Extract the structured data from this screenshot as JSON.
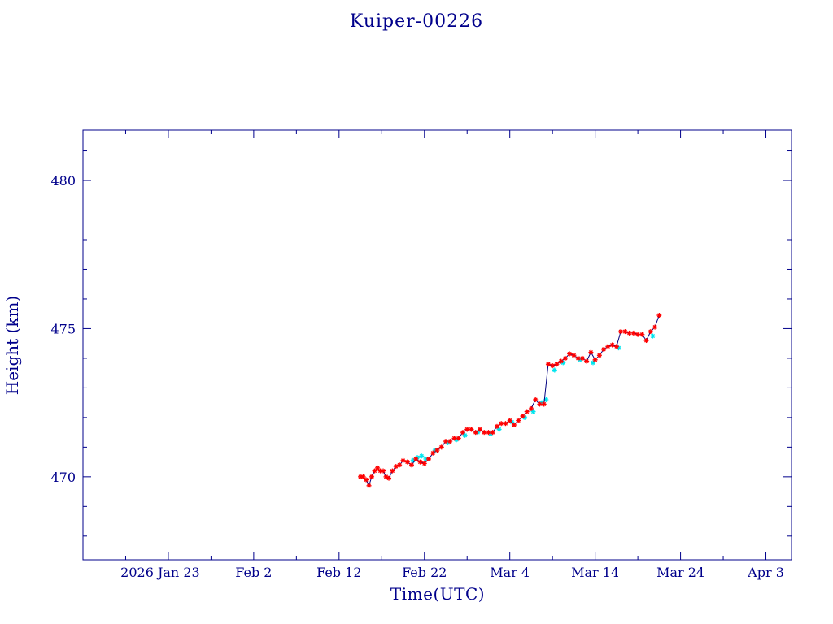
{
  "chart_data": {
    "type": "scatter",
    "title": "Kuiper-00226",
    "xlabel": "Time(UTC)",
    "ylabel": "Height (km)",
    "x_tick_labels": [
      "2026 Jan 23",
      "Feb  2",
      "Feb 12",
      "Feb 22",
      "Mar  4",
      "Mar 14",
      "Mar 24",
      "Apr  3"
    ],
    "y_tick_labels": [
      "470",
      "475",
      "480"
    ],
    "xlim": [
      "2026-01-13",
      "2026-04-06"
    ],
    "ylim": [
      467.2,
      481.7
    ],
    "grid": false,
    "series": [
      {
        "marker": "asterisk",
        "color": "#ff0000",
        "connected": true,
        "points": [
          [
            "2026-02-14T12:00",
            470.0
          ],
          [
            "2026-02-14T20:00",
            470.0
          ],
          [
            "2026-02-15T04:00",
            469.9
          ],
          [
            "2026-02-15T12:00",
            469.7
          ],
          [
            "2026-02-15T20:00",
            470.0
          ],
          [
            "2026-02-16T04:00",
            470.2
          ],
          [
            "2026-02-16T12:00",
            470.3
          ],
          [
            "2026-02-16T20:00",
            470.2
          ],
          [
            "2026-02-17T04:00",
            470.2
          ],
          [
            "2026-02-17T12:00",
            470.0
          ],
          [
            "2026-02-17T20:00",
            469.95
          ],
          [
            "2026-02-18T06:00",
            470.2
          ],
          [
            "2026-02-18T16:00",
            470.35
          ],
          [
            "2026-02-19T02:00",
            470.4
          ],
          [
            "2026-02-19T12:00",
            470.55
          ],
          [
            "2026-02-20T00:00",
            470.5
          ],
          [
            "2026-02-20T12:00",
            470.4
          ],
          [
            "2026-02-21T00:00",
            470.6
          ],
          [
            "2026-02-21T12:00",
            470.5
          ],
          [
            "2026-02-22T00:00",
            470.45
          ],
          [
            "2026-02-22T12:00",
            470.6
          ],
          [
            "2026-02-23T00:00",
            470.8
          ],
          [
            "2026-02-23T12:00",
            470.9
          ],
          [
            "2026-02-24T00:00",
            471.0
          ],
          [
            "2026-02-24T12:00",
            471.2
          ],
          [
            "2026-02-25T00:00",
            471.2
          ],
          [
            "2026-02-25T12:00",
            471.3
          ],
          [
            "2026-02-26T00:00",
            471.3
          ],
          [
            "2026-02-26T12:00",
            471.5
          ],
          [
            "2026-02-27T00:00",
            471.6
          ],
          [
            "2026-02-27T12:00",
            471.6
          ],
          [
            "2026-02-28T00:00",
            471.5
          ],
          [
            "2026-02-28T12:00",
            471.6
          ],
          [
            "2026-03-01T00:00",
            471.5
          ],
          [
            "2026-03-01T12:00",
            471.5
          ],
          [
            "2026-03-02T00:00",
            471.5
          ],
          [
            "2026-03-02T12:00",
            471.7
          ],
          [
            "2026-03-03T00:00",
            471.8
          ],
          [
            "2026-03-03T12:00",
            471.8
          ],
          [
            "2026-03-04T00:00",
            471.9
          ],
          [
            "2026-03-04T12:00",
            471.75
          ],
          [
            "2026-03-05T00:00",
            471.9
          ],
          [
            "2026-03-05T12:00",
            472.05
          ],
          [
            "2026-03-06T00:00",
            472.2
          ],
          [
            "2026-03-06T12:00",
            472.3
          ],
          [
            "2026-03-07T00:00",
            472.6
          ],
          [
            "2026-03-07T12:00",
            472.45
          ],
          [
            "2026-03-08T00:00",
            472.45
          ],
          [
            "2026-03-08T12:00",
            473.8
          ],
          [
            "2026-03-09T00:00",
            473.75
          ],
          [
            "2026-03-09T12:00",
            473.8
          ],
          [
            "2026-03-10T00:00",
            473.9
          ],
          [
            "2026-03-10T12:00",
            474.0
          ],
          [
            "2026-03-11T00:00",
            474.15
          ],
          [
            "2026-03-11T12:00",
            474.1
          ],
          [
            "2026-03-12T00:00",
            474.0
          ],
          [
            "2026-03-12T12:00",
            474.0
          ],
          [
            "2026-03-13T00:00",
            473.9
          ],
          [
            "2026-03-13T12:00",
            474.2
          ],
          [
            "2026-03-14T00:00",
            473.95
          ],
          [
            "2026-03-14T12:00",
            474.1
          ],
          [
            "2026-03-15T00:00",
            474.3
          ],
          [
            "2026-03-15T12:00",
            474.4
          ],
          [
            "2026-03-16T00:00",
            474.45
          ],
          [
            "2026-03-16T12:00",
            474.4
          ],
          [
            "2026-03-17T00:00",
            474.9
          ],
          [
            "2026-03-17T12:00",
            474.9
          ],
          [
            "2026-03-18T00:00",
            474.85
          ],
          [
            "2026-03-18T12:00",
            474.85
          ],
          [
            "2026-03-19T00:00",
            474.8
          ],
          [
            "2026-03-19T12:00",
            474.8
          ],
          [
            "2026-03-20T00:00",
            474.6
          ],
          [
            "2026-03-20T12:00",
            474.9
          ],
          [
            "2026-03-21T00:00",
            475.05
          ],
          [
            "2026-03-21T12:00",
            475.45
          ]
        ]
      },
      {
        "marker": "asterisk",
        "color": "#00e5ee",
        "connected": false,
        "points": [
          [
            "2026-02-20T16:00",
            470.55
          ],
          [
            "2026-02-21T04:00",
            470.65
          ],
          [
            "2026-02-21T16:00",
            470.7
          ],
          [
            "2026-02-22T04:00",
            470.6
          ],
          [
            "2026-02-23T06:00",
            470.9
          ],
          [
            "2026-02-24T18:00",
            471.15
          ],
          [
            "2026-02-25T18:00",
            471.25
          ],
          [
            "2026-02-26T18:00",
            471.4
          ],
          [
            "2026-02-28T06:00",
            471.5
          ],
          [
            "2026-03-01T18:00",
            471.45
          ],
          [
            "2026-03-02T18:00",
            471.6
          ],
          [
            "2026-03-04T06:00",
            471.85
          ],
          [
            "2026-03-05T18:00",
            472.0
          ],
          [
            "2026-03-06T18:00",
            472.2
          ],
          [
            "2026-03-07T18:00",
            472.5
          ],
          [
            "2026-03-08T06:00",
            472.6
          ],
          [
            "2026-03-09T06:00",
            473.6
          ],
          [
            "2026-03-10T06:00",
            473.85
          ],
          [
            "2026-03-12T06:00",
            473.95
          ],
          [
            "2026-03-13T18:00",
            473.85
          ],
          [
            "2026-03-16T18:00",
            474.35
          ],
          [
            "2026-03-20T18:00",
            474.75
          ]
        ]
      }
    ]
  }
}
